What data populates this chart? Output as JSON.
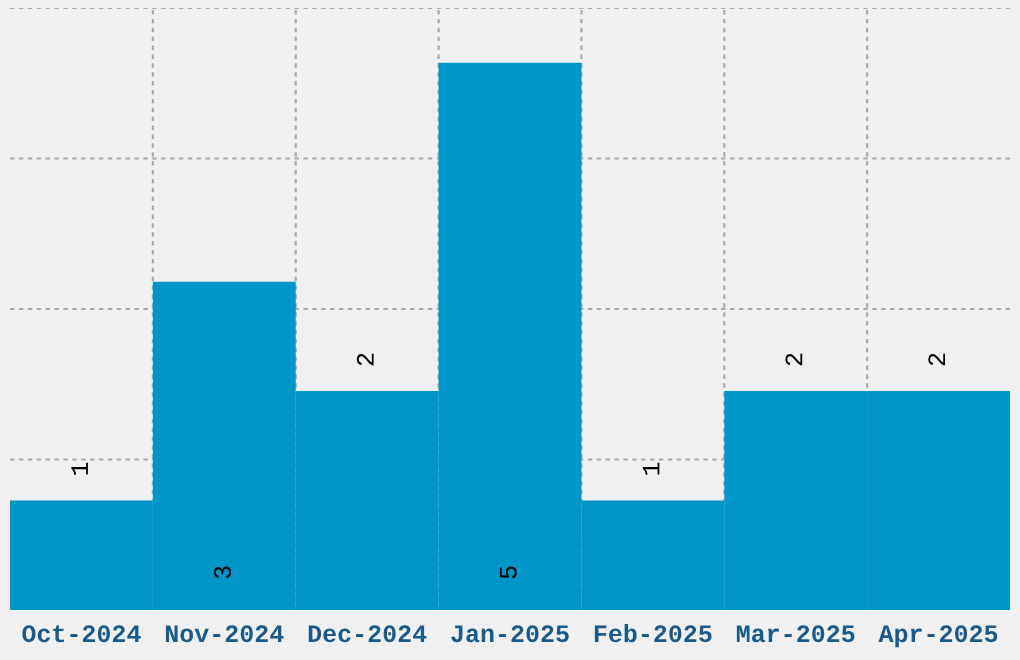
{
  "chart_data": {
    "type": "bar",
    "categories": [
      "Oct-2024",
      "Nov-2024",
      "Dec-2024",
      "Jan-2025",
      "Feb-2025",
      "Mar-2025",
      "Apr-2025"
    ],
    "values": [
      1,
      3,
      2,
      5,
      1,
      2,
      2
    ],
    "color": "#0096c8",
    "ylim": [
      0,
      5.5
    ],
    "yticks": [
      {
        "value": 1.375,
        "label": null
      },
      {
        "value": 2.75,
        "label": null
      },
      {
        "value": 4.125,
        "label": null
      },
      {
        "value": 5.5,
        "label": null
      }
    ],
    "tick_labels": "x",
    "grid": true,
    "data_labels": true
  }
}
